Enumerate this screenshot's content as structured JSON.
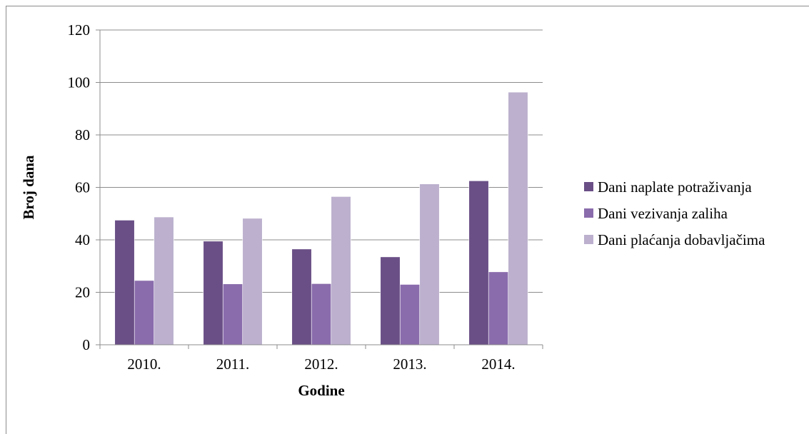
{
  "chart_data": {
    "type": "bar",
    "title": "",
    "xlabel": "Godine",
    "ylabel": "Broj dana",
    "categories": [
      "2010.",
      "2011.",
      "2012.",
      "2013.",
      "2014."
    ],
    "ylim": [
      0,
      120
    ],
    "yticks": [
      "0",
      "20",
      "40",
      "60",
      "80",
      "100",
      "120"
    ],
    "grid": true,
    "legend_position": "right",
    "series": [
      {
        "name": "Dani naplate potraživanja",
        "color": "#6a4f86",
        "values": [
          47.5,
          39.5,
          36.5,
          33.5,
          62.5
        ]
      },
      {
        "name": "Dani vezivanja zaliha",
        "color": "#8a6cac",
        "values": [
          24.5,
          23.2,
          23.3,
          23.0,
          27.8
        ]
      },
      {
        "name": "Dani plaćanja dobavljačima",
        "color": "#bcb0ce",
        "values": [
          48.7,
          48.2,
          56.5,
          61.3,
          96.3
        ]
      }
    ]
  }
}
